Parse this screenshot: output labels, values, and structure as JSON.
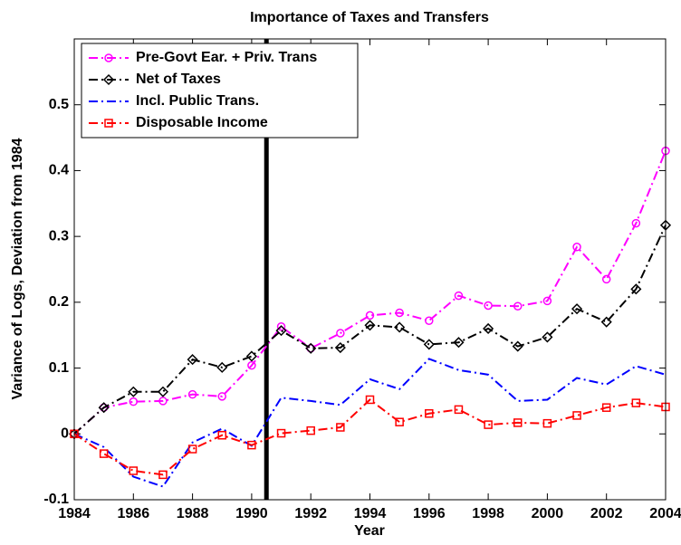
{
  "chart_data": {
    "type": "line",
    "title": "Importance of Taxes and Transfers",
    "x_label": "Year",
    "y_label": "Variance of Logs, Deviation from 1984",
    "x": [
      1984,
      1985,
      1986,
      1987,
      1988,
      1989,
      1990,
      1991,
      1992,
      1993,
      1994,
      1995,
      1996,
      1997,
      1998,
      1999,
      2000,
      2001,
      2002,
      2003,
      2004
    ],
    "series": [
      {
        "name": "Pre-Govt Ear. + Priv. Trans",
        "color": "#ff00ff",
        "marker": "circle",
        "values": [
          0,
          0.04,
          0.049,
          0.05,
          0.06,
          0.057,
          0.104,
          0.163,
          0.13,
          0.153,
          0.18,
          0.184,
          0.172,
          0.21,
          0.195,
          0.194,
          0.202,
          0.284,
          0.235,
          0.32,
          0.43
        ]
      },
      {
        "name": "Net of Taxes",
        "color": "#000000",
        "marker": "diamond",
        "values": [
          0,
          0.04,
          0.064,
          0.064,
          0.113,
          0.101,
          0.118,
          0.157,
          0.13,
          0.131,
          0.165,
          0.162,
          0.136,
          0.139,
          0.16,
          0.133,
          0.147,
          0.19,
          0.17,
          0.22,
          0.317
        ]
      },
      {
        "name": "Incl. Public Trans.",
        "color": "#0000ff",
        "marker": "none",
        "values": [
          0,
          -0.02,
          -0.065,
          -0.08,
          -0.013,
          0.008,
          -0.018,
          0.055,
          0.05,
          0.044,
          0.083,
          0.068,
          0.114,
          0.097,
          0.09,
          0.05,
          0.052,
          0.085,
          0.075,
          0.103,
          0.09
        ]
      },
      {
        "name": "Disposable Income",
        "color": "#ff0000",
        "marker": "square",
        "values": [
          0,
          -0.03,
          -0.056,
          -0.062,
          -0.023,
          -0.002,
          -0.017,
          0.001,
          0.005,
          0.01,
          0.052,
          0.018,
          0.031,
          0.037,
          0.014,
          0.017,
          0.016,
          0.028,
          0.04,
          0.047,
          0.041
        ]
      }
    ],
    "xlim": [
      1984,
      2004
    ],
    "xticks": [
      1984,
      1986,
      1988,
      1990,
      1992,
      1994,
      1996,
      1998,
      2000,
      2002,
      2004
    ],
    "ylim": [
      -0.1,
      0.6
    ],
    "yticks": [
      -0.1,
      0,
      0.1,
      0.2,
      0.3,
      0.4,
      0.5
    ],
    "vline": 1990.5,
    "legend": "upper-left",
    "grid": false
  }
}
